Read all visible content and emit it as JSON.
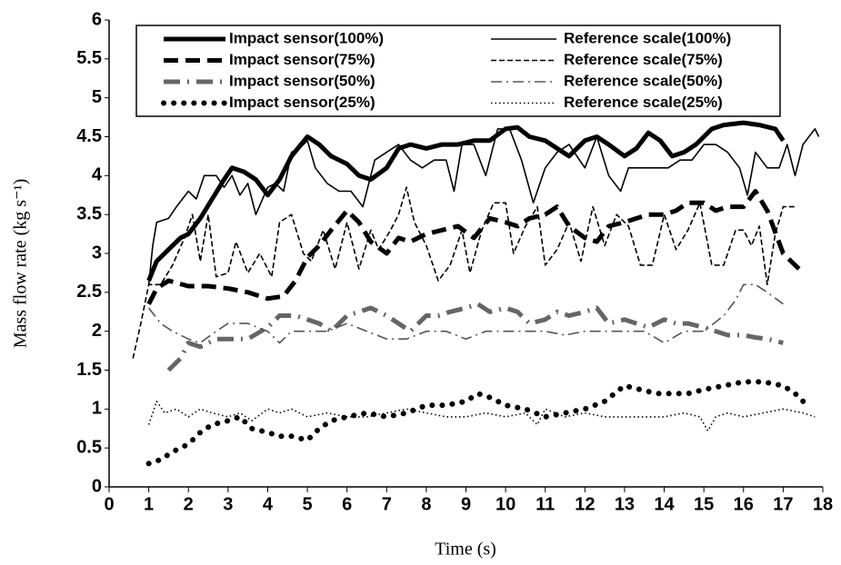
{
  "chart_data": {
    "type": "line",
    "xlabel": "Time (s)",
    "ylabel": "Mass flow rate (kg s⁻¹)",
    "xlim": [
      0,
      18
    ],
    "xticks": [
      0,
      1,
      2,
      3,
      4,
      5,
      6,
      7,
      8,
      9,
      10,
      11,
      12,
      13,
      14,
      15,
      16,
      17,
      18
    ],
    "ylim": [
      0,
      6
    ],
    "yticks": [
      0,
      0.5,
      1,
      1.5,
      2,
      2.5,
      3,
      3.5,
      4,
      4.5,
      5,
      5.5,
      6
    ],
    "grid": false,
    "series": [
      {
        "name": "Impact sensor(100%)",
        "color": "#000000",
        "style": "solid",
        "linewidth": 5,
        "x": [
          1.0,
          1.2,
          1.5,
          1.8,
          2.0,
          2.3,
          2.6,
          2.9,
          3.1,
          3.4,
          3.7,
          4.0,
          4.3,
          4.6,
          5.0,
          5.3,
          5.6,
          6.0,
          6.3,
          6.6,
          7.0,
          7.3,
          7.6,
          8.0,
          8.4,
          8.8,
          9.2,
          9.6,
          10.0,
          10.3,
          10.6,
          11.0,
          11.3,
          11.6,
          12.0,
          12.3,
          12.6,
          13.0,
          13.3,
          13.6,
          13.9,
          14.2,
          14.5,
          14.8,
          15.2,
          15.5,
          16.0,
          16.4,
          16.8,
          17.0
        ],
        "values": [
          2.65,
          2.9,
          3.05,
          3.2,
          3.25,
          3.45,
          3.7,
          3.95,
          4.1,
          4.05,
          3.95,
          3.75,
          3.95,
          4.25,
          4.5,
          4.4,
          4.25,
          4.15,
          4.0,
          3.95,
          4.1,
          4.35,
          4.4,
          4.35,
          4.4,
          4.4,
          4.45,
          4.45,
          4.6,
          4.62,
          4.5,
          4.45,
          4.35,
          4.25,
          4.45,
          4.5,
          4.4,
          4.25,
          4.35,
          4.55,
          4.45,
          4.25,
          4.3,
          4.4,
          4.6,
          4.65,
          4.68,
          4.65,
          4.6,
          4.45
        ]
      },
      {
        "name": "Impact sensor(75%)",
        "color": "#000000",
        "style": "dashed",
        "linewidth": 5,
        "x": [
          1.0,
          1.2,
          1.5,
          2.0,
          2.5,
          3.0,
          3.5,
          4.0,
          4.4,
          4.7,
          5.0,
          5.3,
          5.6,
          6.0,
          6.3,
          6.6,
          7.0,
          7.3,
          7.6,
          8.0,
          8.4,
          8.8,
          9.2,
          9.6,
          10.0,
          10.3,
          10.6,
          11.0,
          11.3,
          11.6,
          12.0,
          12.3,
          12.6,
          13.0,
          13.3,
          13.6,
          14.0,
          14.3,
          14.6,
          15.0,
          15.3,
          15.6,
          16.0,
          16.3,
          16.6,
          17.0,
          17.2,
          17.4
        ],
        "values": [
          2.35,
          2.55,
          2.65,
          2.58,
          2.58,
          2.55,
          2.5,
          2.42,
          2.45,
          2.65,
          2.95,
          3.1,
          3.3,
          3.55,
          3.4,
          3.15,
          3.0,
          3.2,
          3.15,
          3.25,
          3.3,
          3.35,
          3.2,
          3.45,
          3.4,
          3.35,
          3.45,
          3.5,
          3.6,
          3.35,
          3.2,
          3.15,
          3.35,
          3.4,
          3.45,
          3.5,
          3.5,
          3.55,
          3.65,
          3.65,
          3.55,
          3.6,
          3.6,
          3.8,
          3.55,
          3.0,
          2.9,
          2.8
        ]
      },
      {
        "name": "Impact sensor(50%)",
        "color": "#666666",
        "style": "dashdot",
        "linewidth": 5,
        "x": [
          1.5,
          1.8,
          2.0,
          2.3,
          2.7,
          3.0,
          3.5,
          4.0,
          4.3,
          4.7,
          5.0,
          5.3,
          5.6,
          6.0,
          6.3,
          6.6,
          7.0,
          7.3,
          7.6,
          8.0,
          8.3,
          8.6,
          9.0,
          9.3,
          9.6,
          10.0,
          10.3,
          10.6,
          11.0,
          11.3,
          11.6,
          12.0,
          12.3,
          12.6,
          13.0,
          13.3,
          13.6,
          14.0,
          14.3,
          14.6,
          15.0,
          15.3,
          15.6,
          16.0,
          16.3,
          16.6,
          17.0
        ],
        "values": [
          1.5,
          1.65,
          1.85,
          1.8,
          1.9,
          1.9,
          1.9,
          2.05,
          2.2,
          2.2,
          2.15,
          2.1,
          2.0,
          2.2,
          2.25,
          2.3,
          2.2,
          2.1,
          2.0,
          2.2,
          2.2,
          2.25,
          2.3,
          2.35,
          2.25,
          2.3,
          2.25,
          2.1,
          2.15,
          2.25,
          2.2,
          2.25,
          2.3,
          2.1,
          2.15,
          2.1,
          2.05,
          2.15,
          2.1,
          2.1,
          2.05,
          2.0,
          1.95,
          1.95,
          1.92,
          1.9,
          1.85
        ]
      },
      {
        "name": "Impact sensor(25%)",
        "color": "#000000",
        "style": "dotted",
        "linewidth": 6,
        "x": [
          1.0,
          1.3,
          1.6,
          2.0,
          2.3,
          2.6,
          3.0,
          3.3,
          3.6,
          4.0,
          4.3,
          4.6,
          5.0,
          5.3,
          5.6,
          6.0,
          6.5,
          7.0,
          7.5,
          8.0,
          8.5,
          9.0,
          9.3,
          9.6,
          10.0,
          10.5,
          11.0,
          11.5,
          12.0,
          12.5,
          13.0,
          13.4,
          13.8,
          14.2,
          14.6,
          15.0,
          15.5,
          16.0,
          16.5,
          17.0,
          17.3,
          17.6
        ],
        "values": [
          0.3,
          0.35,
          0.45,
          0.55,
          0.7,
          0.8,
          0.85,
          0.9,
          0.75,
          0.7,
          0.65,
          0.65,
          0.6,
          0.75,
          0.85,
          0.9,
          0.95,
          0.9,
          0.95,
          1.05,
          1.05,
          1.1,
          1.2,
          1.15,
          1.05,
          1.0,
          0.9,
          0.95,
          1.0,
          1.1,
          1.3,
          1.25,
          1.2,
          1.2,
          1.2,
          1.25,
          1.3,
          1.35,
          1.35,
          1.3,
          1.2,
          1.05
        ]
      },
      {
        "name": "Reference scale(100%)",
        "color": "#000000",
        "style": "solid",
        "linewidth": 1.6,
        "x": [
          1.0,
          1.1,
          1.2,
          1.5,
          1.7,
          2.0,
          2.2,
          2.4,
          2.7,
          2.9,
          3.1,
          3.3,
          3.5,
          3.7,
          4.0,
          4.2,
          4.4,
          4.6,
          4.8,
          5.0,
          5.2,
          5.5,
          5.8,
          6.1,
          6.4,
          6.7,
          7.0,
          7.3,
          7.6,
          7.9,
          8.2,
          8.5,
          8.7,
          8.9,
          9.2,
          9.5,
          9.8,
          10.1,
          10.4,
          10.7,
          11.0,
          11.3,
          11.6,
          12.0,
          12.3,
          12.6,
          12.9,
          13.1,
          13.5,
          13.8,
          14.1,
          14.4,
          14.7,
          15.0,
          15.3,
          15.6,
          15.9,
          16.1,
          16.3,
          16.6,
          16.9,
          17.1,
          17.3,
          17.5,
          17.8,
          17.9
        ],
        "values": [
          2.6,
          3.1,
          3.4,
          3.45,
          3.6,
          3.8,
          3.7,
          4.0,
          4.0,
          3.85,
          4.0,
          3.75,
          3.9,
          3.5,
          3.85,
          3.9,
          3.8,
          4.3,
          4.35,
          4.45,
          4.1,
          3.9,
          3.8,
          3.8,
          3.6,
          4.2,
          4.3,
          4.4,
          4.2,
          4.1,
          4.2,
          4.2,
          3.8,
          4.4,
          4.4,
          4.0,
          4.6,
          4.6,
          4.2,
          3.65,
          4.1,
          4.3,
          4.4,
          4.1,
          4.5,
          4.0,
          3.8,
          4.1,
          4.1,
          4.1,
          4.1,
          4.2,
          4.2,
          4.4,
          4.4,
          4.3,
          4.1,
          3.75,
          4.3,
          4.1,
          4.1,
          4.4,
          4.0,
          4.4,
          4.6,
          4.5
        ]
      },
      {
        "name": "Reference scale(75%)",
        "color": "#000000",
        "style": "dashed",
        "linewidth": 1.6,
        "x": [
          0.6,
          0.8,
          1.0,
          1.3,
          1.6,
          1.9,
          2.1,
          2.3,
          2.5,
          2.7,
          3.0,
          3.2,
          3.5,
          3.8,
          4.1,
          4.3,
          4.6,
          4.9,
          5.1,
          5.4,
          5.7,
          6.0,
          6.3,
          6.6,
          6.8,
          7.1,
          7.3,
          7.5,
          7.7,
          8.0,
          8.3,
          8.6,
          8.9,
          9.1,
          9.4,
          9.7,
          10.0,
          10.2,
          10.5,
          10.8,
          11.0,
          11.3,
          11.6,
          11.9,
          12.2,
          12.5,
          12.8,
          13.1,
          13.4,
          13.7,
          14.0,
          14.3,
          14.6,
          14.9,
          15.2,
          15.5,
          15.8,
          16.0,
          16.2,
          16.4,
          16.6,
          16.8,
          17.0,
          17.3
        ],
        "values": [
          1.65,
          2.1,
          2.6,
          2.6,
          2.85,
          3.2,
          3.5,
          2.9,
          3.5,
          2.7,
          2.75,
          3.15,
          2.75,
          3.0,
          2.7,
          3.4,
          3.5,
          3.0,
          2.9,
          3.3,
          2.8,
          3.4,
          2.8,
          3.3,
          3.05,
          3.3,
          3.5,
          3.85,
          3.4,
          3.1,
          2.65,
          2.85,
          3.3,
          2.75,
          3.3,
          3.65,
          3.65,
          3.0,
          3.35,
          3.6,
          2.85,
          3.05,
          3.4,
          2.9,
          3.6,
          3.1,
          3.5,
          3.35,
          2.85,
          2.85,
          3.5,
          3.05,
          3.3,
          3.65,
          2.85,
          2.85,
          3.3,
          3.3,
          3.1,
          3.35,
          2.6,
          3.25,
          3.6,
          3.6
        ]
      },
      {
        "name": "Reference scale(50%)",
        "color": "#555555",
        "style": "dashdot",
        "linewidth": 1.6,
        "x": [
          1.0,
          1.3,
          1.6,
          2.0,
          2.3,
          2.7,
          3.0,
          3.5,
          4.0,
          4.3,
          4.6,
          5.0,
          5.5,
          6.0,
          6.5,
          7.0,
          7.5,
          8.0,
          8.5,
          9.0,
          9.5,
          10.0,
          10.5,
          11.0,
          11.5,
          12.0,
          12.5,
          13.0,
          13.5,
          14.0,
          14.5,
          15.0,
          15.5,
          15.8,
          16.0,
          16.3,
          16.6,
          17.0
        ],
        "values": [
          2.3,
          2.1,
          2.0,
          1.9,
          1.85,
          2.0,
          2.1,
          2.1,
          2.0,
          1.85,
          2.0,
          2.0,
          2.0,
          2.1,
          2.0,
          1.9,
          1.9,
          2.0,
          2.0,
          1.9,
          2.0,
          2.0,
          2.0,
          2.0,
          1.95,
          2.0,
          2.0,
          2.0,
          2.0,
          1.85,
          2.0,
          2.0,
          2.2,
          2.4,
          2.6,
          2.6,
          2.5,
          2.35
        ]
      },
      {
        "name": "Reference scale(25%)",
        "color": "#000000",
        "style": "dotted",
        "linewidth": 1.6,
        "x": [
          1.0,
          1.2,
          1.4,
          1.7,
          2.0,
          2.3,
          2.6,
          3.0,
          3.3,
          3.6,
          4.0,
          4.3,
          4.6,
          5.0,
          5.5,
          6.0,
          6.5,
          7.0,
          7.5,
          8.0,
          8.5,
          9.0,
          9.5,
          10.0,
          10.5,
          10.8,
          11.0,
          11.5,
          12.0,
          12.5,
          13.0,
          13.5,
          14.0,
          14.5,
          14.9,
          15.1,
          15.3,
          15.6,
          16.0,
          16.5,
          17.0,
          17.5,
          17.8
        ],
        "values": [
          0.8,
          1.1,
          0.95,
          1.0,
          0.9,
          1.0,
          0.95,
          0.9,
          0.95,
          0.85,
          1.0,
          0.95,
          1.0,
          0.9,
          0.95,
          0.9,
          0.9,
          0.95,
          1.0,
          0.95,
          0.9,
          0.9,
          0.95,
          0.9,
          0.95,
          0.8,
          1.0,
          0.9,
          0.95,
          0.9,
          0.9,
          0.9,
          0.9,
          0.95,
          0.9,
          0.72,
          0.9,
          0.95,
          0.9,
          0.95,
          1.0,
          0.95,
          0.9
        ]
      }
    ]
  }
}
